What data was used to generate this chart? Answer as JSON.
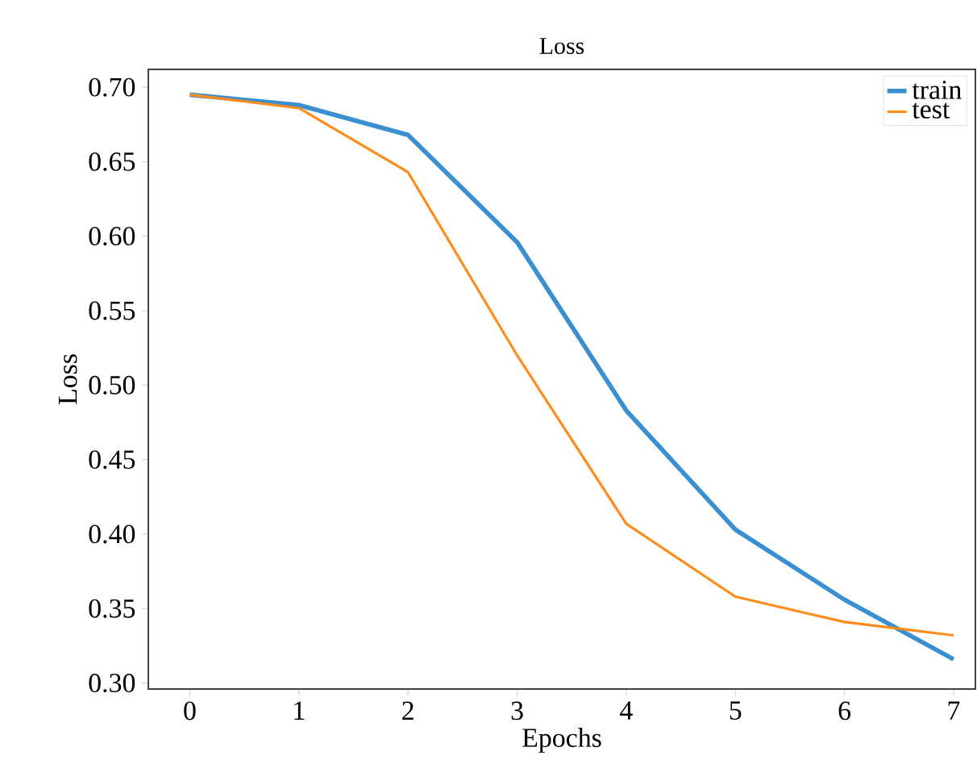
{
  "chart_data": {
    "type": "line",
    "title": "Loss",
    "xlabel": "Epochs",
    "ylabel": "Loss",
    "x": [
      0,
      1,
      2,
      3,
      4,
      5,
      6,
      7
    ],
    "series": [
      {
        "name": "train",
        "color": "#3a8fd0",
        "values": [
          0.695,
          0.688,
          0.668,
          0.596,
          0.483,
          0.403,
          0.356,
          0.316
        ]
      },
      {
        "name": "test",
        "color": "#ff8c1a",
        "values": [
          0.695,
          0.686,
          0.643,
          0.52,
          0.407,
          0.358,
          0.341,
          0.332
        ]
      }
    ],
    "xlim": [
      -0.38,
      7.2
    ],
    "ylim": [
      0.296,
      0.712
    ],
    "xticks": [
      0,
      1,
      2,
      3,
      4,
      5,
      6,
      7
    ],
    "yticks": [
      {
        "value": 0.3,
        "label": "0.30"
      },
      {
        "value": 0.35,
        "label": "0.35"
      },
      {
        "value": 0.4,
        "label": "0.40"
      },
      {
        "value": 0.45,
        "label": "0.45"
      },
      {
        "value": 0.5,
        "label": "0.50"
      },
      {
        "value": 0.55,
        "label": "0.55"
      },
      {
        "value": 0.6,
        "label": "0.60"
      },
      {
        "value": 0.65,
        "label": "0.65"
      },
      {
        "value": 0.7,
        "label": "0.70"
      }
    ],
    "legend": "top right",
    "grid": false
  }
}
